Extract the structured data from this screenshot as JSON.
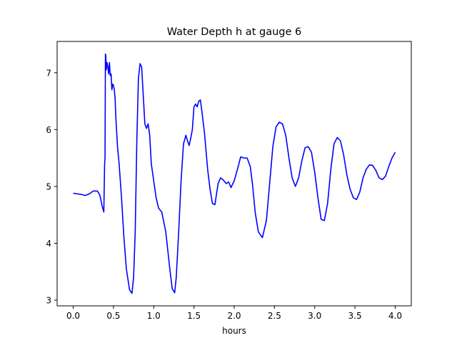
{
  "chart_data": {
    "type": "line",
    "title": "Water Depth h at gauge 6",
    "xlabel": "hours",
    "ylabel": "",
    "xlim": [
      -0.2,
      4.2
    ],
    "ylim": [
      2.9,
      7.55
    ],
    "xticks": [
      0.0,
      0.5,
      1.0,
      1.5,
      2.0,
      2.5,
      3.0,
      3.5,
      4.0
    ],
    "xtick_labels": [
      "0.0",
      "0.5",
      "1.0",
      "1.5",
      "2.0",
      "2.5",
      "3.0",
      "3.5",
      "4.0"
    ],
    "yticks": [
      3,
      4,
      5,
      6,
      7
    ],
    "ytick_labels": [
      "3",
      "4",
      "5",
      "6",
      "7"
    ],
    "grid": false,
    "series": [
      {
        "color": "#0000ff",
        "x": [
          0.0,
          0.05,
          0.1,
          0.15,
          0.2,
          0.25,
          0.3,
          0.33,
          0.36,
          0.38,
          0.39,
          0.395,
          0.4,
          0.405,
          0.41,
          0.42,
          0.43,
          0.44,
          0.45,
          0.46,
          0.47,
          0.48,
          0.49,
          0.5,
          0.51,
          0.52,
          0.53,
          0.55,
          0.57,
          0.6,
          0.63,
          0.66,
          0.7,
          0.73,
          0.75,
          0.77,
          0.79,
          0.81,
          0.83,
          0.85,
          0.87,
          0.89,
          0.91,
          0.93,
          0.95,
          0.97,
          1.0,
          1.03,
          1.06,
          1.1,
          1.15,
          1.2,
          1.23,
          1.26,
          1.28,
          1.31,
          1.34,
          1.37,
          1.4,
          1.42,
          1.44,
          1.46,
          1.48,
          1.5,
          1.52,
          1.54,
          1.56,
          1.58,
          1.6,
          1.63,
          1.67,
          1.7,
          1.73,
          1.76,
          1.8,
          1.83,
          1.86,
          1.9,
          1.93,
          1.96,
          2.0,
          2.04,
          2.08,
          2.12,
          2.16,
          2.2,
          2.23,
          2.26,
          2.3,
          2.35,
          2.4,
          2.44,
          2.48,
          2.52,
          2.56,
          2.6,
          2.64,
          2.68,
          2.72,
          2.76,
          2.8,
          2.84,
          2.88,
          2.92,
          2.96,
          3.0,
          3.04,
          3.08,
          3.12,
          3.16,
          3.2,
          3.24,
          3.28,
          3.32,
          3.36,
          3.4,
          3.44,
          3.48,
          3.52,
          3.56,
          3.6,
          3.64,
          3.68,
          3.72,
          3.76,
          3.8,
          3.84,
          3.88,
          3.92,
          3.96,
          4.0
        ],
        "y": [
          4.88,
          4.87,
          4.86,
          4.84,
          4.87,
          4.92,
          4.92,
          4.85,
          4.65,
          4.55,
          5.4,
          5.5,
          7.33,
          7.3,
          7.05,
          7.18,
          7.1,
          6.98,
          7.18,
          6.95,
          6.98,
          6.7,
          6.8,
          6.78,
          6.7,
          6.55,
          6.2,
          5.7,
          5.4,
          4.8,
          4.1,
          3.55,
          3.18,
          3.12,
          3.4,
          4.2,
          5.8,
          6.9,
          7.16,
          7.1,
          6.6,
          6.1,
          6.02,
          6.1,
          5.9,
          5.4,
          5.1,
          4.8,
          4.62,
          4.55,
          4.2,
          3.55,
          3.2,
          3.13,
          3.4,
          4.2,
          5.1,
          5.75,
          5.9,
          5.8,
          5.72,
          5.85,
          6.0,
          6.4,
          6.45,
          6.4,
          6.5,
          6.52,
          6.3,
          5.95,
          5.3,
          4.95,
          4.7,
          4.68,
          5.05,
          5.15,
          5.12,
          5.05,
          5.08,
          4.98,
          5.1,
          5.3,
          5.52,
          5.5,
          5.5,
          5.35,
          5.0,
          4.55,
          4.2,
          4.1,
          4.4,
          5.05,
          5.7,
          6.05,
          6.13,
          6.1,
          5.9,
          5.5,
          5.15,
          5.0,
          5.15,
          5.45,
          5.68,
          5.7,
          5.6,
          5.25,
          4.8,
          4.42,
          4.4,
          4.7,
          5.3,
          5.75,
          5.86,
          5.8,
          5.55,
          5.2,
          4.95,
          4.8,
          4.77,
          4.9,
          5.15,
          5.3,
          5.38,
          5.37,
          5.28,
          5.15,
          5.12,
          5.18,
          5.35,
          5.5,
          5.6
        ]
      }
    ]
  }
}
